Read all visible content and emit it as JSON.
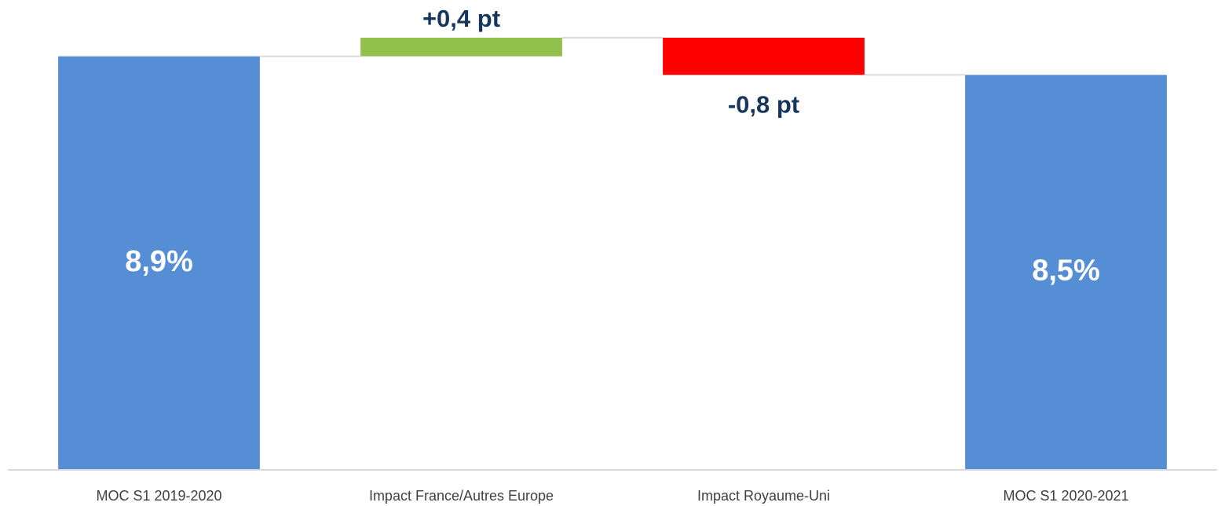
{
  "chart_data": {
    "type": "waterfall",
    "categories": [
      "MOC S1 2019-2020",
      "Impact France/Autres Europe",
      "Impact Royaume-Uni",
      "MOC S1 2020-2021"
    ],
    "values": [
      8.9,
      0.4,
      -0.8,
      8.5
    ],
    "value_labels": [
      "8,9%",
      "+0,4 pt",
      "-0,8 pt",
      "8,5%"
    ],
    "measure": [
      "absolute",
      "relative",
      "relative",
      "absolute"
    ],
    "colors": [
      "#558ed5",
      "#92c04c",
      "#ff0000",
      "#558ed5"
    ]
  }
}
